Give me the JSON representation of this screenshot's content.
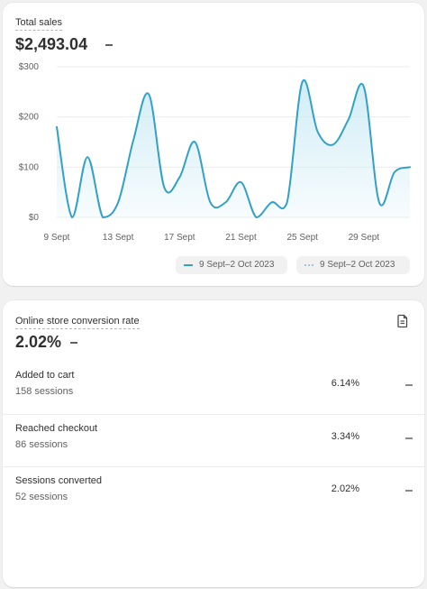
{
  "sales": {
    "label": "Total sales",
    "value": "$2,493.04",
    "legend": [
      "9 Sept–2 Oct 2023",
      "9 Sept–2 Oct 2023"
    ]
  },
  "conversion": {
    "label": "Online store conversion rate",
    "value": "2.02%",
    "rows": [
      {
        "title": "Added to cart",
        "sessions": "158 sessions",
        "percent": "6.14%"
      },
      {
        "title": "Reached checkout",
        "sessions": "86 sessions",
        "percent": "3.34%"
      },
      {
        "title": "Sessions converted",
        "sessions": "52 sessions",
        "percent": "2.02%"
      }
    ]
  },
  "colors": {
    "line": "#33a0c8",
    "fill": "#ccebf5",
    "grid": "#ebebeb",
    "background": "#f1f1f1"
  },
  "icons": {
    "comparison": "dash-icon",
    "export": "file-icon"
  },
  "chart_data": {
    "type": "line",
    "x": [
      "9 Sept",
      "10 Sept",
      "11 Sept",
      "12 Sept",
      "13 Sept",
      "14 Sept",
      "15 Sept",
      "16 Sept",
      "17 Sept",
      "18 Sept",
      "19 Sept",
      "20 Sept",
      "21 Sept",
      "22 Sept",
      "23 Sept",
      "24 Sept",
      "25 Sept",
      "26 Sept",
      "27 Sept",
      "28 Sept",
      "29 Sept",
      "30 Sept",
      "1 Oct",
      "2 Oct"
    ],
    "x_tick_labels": [
      "9 Sept",
      "13 Sept",
      "17 Sept",
      "21 Sept",
      "25 Sept",
      "29 Sept"
    ],
    "y_tick_labels": [
      "$0",
      "$100",
      "$200",
      "$300"
    ],
    "ylim": [
      0,
      300
    ],
    "series": [
      {
        "name": "9 Sept–2 Oct 2023",
        "values": [
          180,
          0,
          120,
          0,
          30,
          155,
          245,
          60,
          80,
          150,
          30,
          30,
          70,
          0,
          30,
          30,
          270,
          170,
          145,
          195,
          260,
          30,
          90,
          100
        ]
      }
    ],
    "grid": true,
    "legend_position": "bottom-right"
  }
}
